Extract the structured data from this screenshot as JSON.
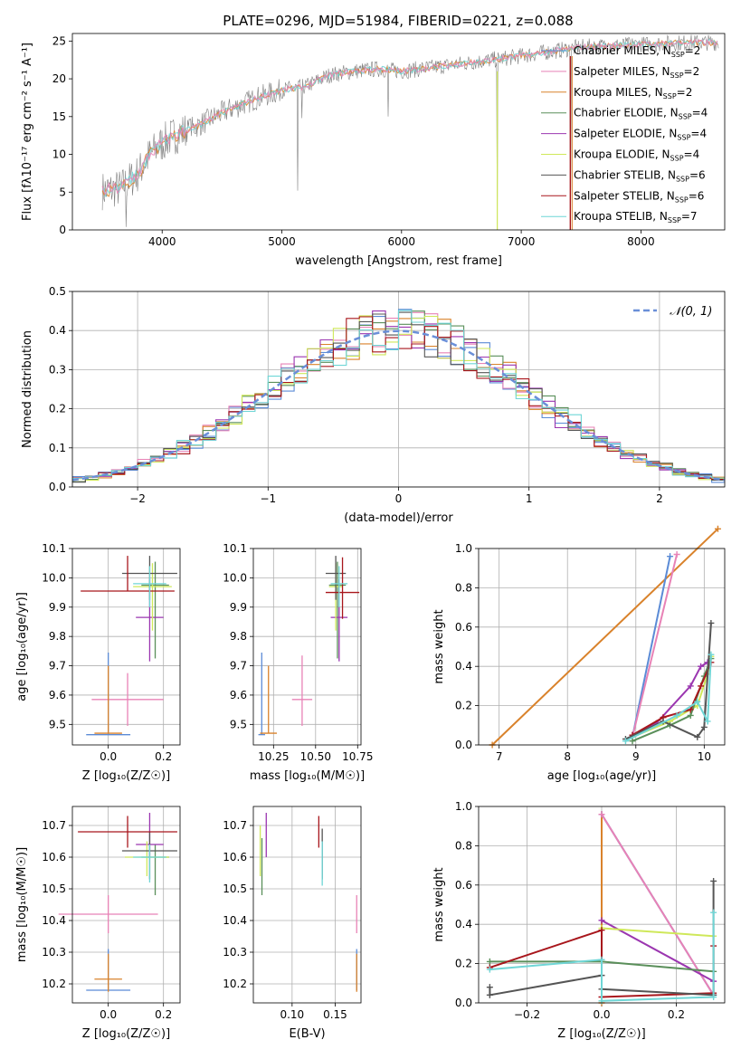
{
  "figure": {
    "title": "PLATE=0296, MJD=51984, FIBERID=0221, z=0.088"
  },
  "colors": {
    "Chabrier MILES": "#5b8bd6",
    "Salpeter MILES": "#e882b6",
    "Kroupa MILES": "#d9822b",
    "Chabrier ELODIE": "#5a8f5a",
    "Salpeter ELODIE": "#9b36b0",
    "Kroupa ELODIE": "#cfe85a",
    "Chabrier STELIB": "#555555",
    "Salpeter STELIB": "#a8161c",
    "Kroupa STELIB": "#6fd6d6",
    "data": "#808080",
    "normal": "#6a8fd8"
  },
  "chart_data": [
    {
      "id": "spectrum",
      "type": "line",
      "xlabel": "wavelength [Angstrom, rest frame]",
      "ylabel": "Flux [fλ10⁻¹⁷ erg cm⁻² s⁻¹ A⁻¹]",
      "xlim": [
        3250,
        8700
      ],
      "ylim": [
        0,
        26
      ],
      "xticks": [
        4000,
        5000,
        6000,
        7000,
        8000
      ],
      "yticks": [
        0,
        5,
        10,
        15,
        20,
        25
      ],
      "legend_position": "upper right",
      "legend": [
        {
          "label": "Chabrier MILES, N",
          "sub": "SSP",
          "post": "=2"
        },
        {
          "label": "Salpeter MILES, N",
          "sub": "SSP",
          "post": "=2"
        },
        {
          "label": "Kroupa MILES, N",
          "sub": "SSP",
          "post": "=2"
        },
        {
          "label": "Chabrier ELODIE, N",
          "sub": "SSP",
          "post": "=4"
        },
        {
          "label": "Salpeter ELODIE, N",
          "sub": "SSP",
          "post": "=4"
        },
        {
          "label": "Kroupa ELODIE, N",
          "sub": "SSP",
          "post": "=4"
        },
        {
          "label": "Chabrier STELIB, N",
          "sub": "SSP",
          "post": "=6"
        },
        {
          "label": "Salpeter STELIB, N",
          "sub": "SSP",
          "post": "=6"
        },
        {
          "label": "Kroupa STELIB, N",
          "sub": "SSP",
          "post": "=7"
        }
      ],
      "continuum": [
        [
          3500,
          5.2
        ],
        [
          3650,
          5.5
        ],
        [
          3800,
          7.5
        ],
        [
          3900,
          10.0
        ],
        [
          4000,
          11.5
        ],
        [
          4100,
          12.5
        ],
        [
          4300,
          13.8
        ],
        [
          4500,
          15.5
        ],
        [
          4800,
          17.5
        ],
        [
          5000,
          18.5
        ],
        [
          5200,
          19.0
        ],
        [
          5400,
          20.5
        ],
        [
          5600,
          21.0
        ],
        [
          5800,
          21.3
        ],
        [
          6000,
          21.0
        ],
        [
          6300,
          21.6
        ],
        [
          6600,
          22.2
        ],
        [
          6900,
          22.8
        ],
        [
          7200,
          23.5
        ],
        [
          7500,
          24.2
        ],
        [
          7800,
          24.4
        ],
        [
          8100,
          24.6
        ],
        [
          8400,
          24.8
        ],
        [
          8650,
          24.8
        ]
      ],
      "features": [
        [
          5130,
          5.2
        ],
        [
          3700,
          0.4
        ],
        [
          4230,
          14.6
        ],
        [
          5170,
          14.8
        ],
        [
          5890,
          15.0
        ],
        [
          6800,
          0.0
        ],
        [
          7410,
          0.0
        ]
      ]
    },
    {
      "id": "residuals",
      "type": "line",
      "xlabel": "(data-model)/error",
      "ylabel": "Normed distribution",
      "xlim": [
        -2.5,
        2.5
      ],
      "ylim": [
        0,
        0.5
      ],
      "xticks": [
        -2,
        -1,
        0,
        1,
        2
      ],
      "yticks": [
        0.0,
        0.1,
        0.2,
        0.3,
        0.4,
        0.5
      ],
      "legend_position": "upper right",
      "legend_label": "𝒩(0, 1)",
      "normal_mean": 0,
      "normal_sigma": 1
    },
    {
      "id": "age_vs_Z",
      "type": "scatter",
      "xlabel": "Z [log₁₀(Z/Z☉)]",
      "ylabel": "age  [log₁₀(age/yr)]",
      "xlim": [
        -0.13,
        0.26
      ],
      "ylim": [
        9.43,
        10.1
      ],
      "xticks": [
        0.0,
        0.2
      ],
      "yticks": [
        9.5,
        9.6,
        9.7,
        9.8,
        9.9,
        10.0,
        10.1
      ],
      "points": [
        {
          "model": "Chabrier MILES",
          "x": 0.0,
          "y": 9.465,
          "xerr": 0.08,
          "yerr": [
            0.0,
            0.28
          ]
        },
        {
          "model": "Salpeter MILES",
          "x": 0.07,
          "y": 9.585,
          "xerr": 0.13,
          "yerr": [
            0.09,
            0.09
          ]
        },
        {
          "model": "Kroupa MILES",
          "x": 0.0,
          "y": 9.47,
          "xerr": 0.05,
          "yerr": [
            0.0,
            0.23
          ]
        },
        {
          "model": "Chabrier ELODIE",
          "x": 0.17,
          "y": 9.975,
          "xerr": 0.05,
          "yerr": [
            0.25,
            0.08
          ]
        },
        {
          "model": "Salpeter ELODIE",
          "x": 0.15,
          "y": 9.865,
          "xerr": 0.05,
          "yerr": [
            0.15,
            0.13
          ]
        },
        {
          "model": "Kroupa ELODIE",
          "x": 0.16,
          "y": 9.97,
          "xerr": 0.07,
          "yerr": [
            0.15,
            0.08
          ]
        },
        {
          "model": "Chabrier STELIB",
          "x": 0.15,
          "y": 10.015,
          "xerr": 0.1,
          "yerr": [
            0.09,
            0.06
          ]
        },
        {
          "model": "Salpeter STELIB",
          "x": 0.07,
          "y": 9.955,
          "xerr": 0.17,
          "yerr": [
            0.0,
            0.12
          ]
        },
        {
          "model": "Kroupa STELIB",
          "x": 0.15,
          "y": 9.98,
          "xerr": 0.06,
          "yerr": [
            0.08,
            0.06
          ]
        }
      ]
    },
    {
      "id": "age_vs_mass",
      "type": "scatter",
      "xlabel": "mass [log₁₀(M/M☉)]",
      "ylabel": "",
      "xlim": [
        10.13,
        10.77
      ],
      "ylim": [
        9.43,
        10.1
      ],
      "xticks": [
        10.25,
        10.5,
        10.75
      ],
      "yticks": [
        9.5,
        9.6,
        9.7,
        9.8,
        9.9,
        10.0,
        10.1
      ],
      "points": [
        {
          "model": "Chabrier MILES",
          "x": 10.18,
          "y": 9.465,
          "xerr": 0.02,
          "yerr": [
            0.0,
            0.28
          ]
        },
        {
          "model": "Salpeter MILES",
          "x": 10.42,
          "y": 9.585,
          "xerr": 0.06,
          "yerr": [
            0.09,
            0.15
          ]
        },
        {
          "model": "Kroupa MILES",
          "x": 10.22,
          "y": 9.47,
          "xerr": 0.05,
          "yerr": [
            0.0,
            0.23
          ]
        },
        {
          "model": "Chabrier ELODIE",
          "x": 10.63,
          "y": 9.975,
          "xerr": 0.05,
          "yerr": [
            0.25,
            0.08
          ]
        },
        {
          "model": "Salpeter ELODIE",
          "x": 10.64,
          "y": 9.865,
          "xerr": 0.05,
          "yerr": [
            0.15,
            0.13
          ]
        },
        {
          "model": "Kroupa ELODIE",
          "x": 10.62,
          "y": 9.97,
          "xerr": 0.04,
          "yerr": [
            0.15,
            0.08
          ]
        },
        {
          "model": "Chabrier STELIB",
          "x": 10.62,
          "y": 10.015,
          "xerr": 0.06,
          "yerr": [
            0.09,
            0.06
          ]
        },
        {
          "model": "Salpeter STELIB",
          "x": 10.66,
          "y": 9.95,
          "xerr": 0.1,
          "yerr": [
            0.09,
            0.12
          ]
        },
        {
          "model": "Kroupa STELIB",
          "x": 10.64,
          "y": 9.98,
          "xerr": 0.05,
          "yerr": [
            0.08,
            0.06
          ]
        }
      ]
    },
    {
      "id": "weight_vs_age",
      "type": "line",
      "xlabel": "age  [log₁₀(age/yr)]",
      "ylabel": "mass weight",
      "xlim": [
        6.7,
        10.3
      ],
      "ylim": [
        0,
        1
      ],
      "xticks": [
        7,
        8,
        9,
        10
      ],
      "yticks": [
        0.0,
        0.2,
        0.4,
        0.6,
        0.8,
        1.0
      ],
      "series": [
        {
          "model": "Kroupa MILES",
          "x": [
            6.9,
            10.2
          ],
          "y": [
            0.0,
            1.1
          ]
        },
        {
          "model": "Chabrier MILES",
          "x": [
            8.95,
            9.5
          ],
          "y": [
            0.04,
            0.96
          ]
        },
        {
          "model": "Salpeter MILES",
          "x": [
            8.95,
            9.6
          ],
          "y": [
            0.04,
            0.97
          ]
        },
        {
          "model": "Salpeter ELODIE",
          "x": [
            8.95,
            9.3,
            9.8,
            9.95,
            10.05
          ],
          "y": [
            0.05,
            0.11,
            0.3,
            0.4,
            0.42
          ]
        },
        {
          "model": "Kroupa ELODIE",
          "x": [
            8.95,
            9.5,
            9.9,
            10.05,
            10.1
          ],
          "y": [
            0.04,
            0.12,
            0.2,
            0.36,
            0.45
          ]
        },
        {
          "model": "Chabrier ELODIE",
          "x": [
            8.95,
            9.5,
            9.8,
            10.0,
            10.1
          ],
          "y": [
            0.02,
            0.1,
            0.15,
            0.35,
            0.44
          ]
        },
        {
          "model": "Salpeter STELIB",
          "x": [
            8.95,
            9.4,
            9.8,
            9.95,
            10.1
          ],
          "y": [
            0.05,
            0.14,
            0.18,
            0.3,
            0.42
          ]
        },
        {
          "model": "Chabrier STELIB",
          "x": [
            8.85,
            9.4,
            9.9,
            10.0,
            10.1
          ],
          "y": [
            0.03,
            0.12,
            0.04,
            0.09,
            0.62
          ]
        },
        {
          "model": "Kroupa STELIB",
          "x": [
            8.85,
            9.6,
            9.9,
            10.05,
            10.1
          ],
          "y": [
            0.02,
            0.15,
            0.22,
            0.12,
            0.46
          ]
        }
      ]
    },
    {
      "id": "mass_vs_Z",
      "type": "scatter",
      "xlabel": "Z [log₁₀(Z/Z☉)]",
      "ylabel": "mass [log₁₀(M/M☉)]",
      "xlim": [
        -0.13,
        0.26
      ],
      "ylim": [
        10.14,
        10.76
      ],
      "xticks": [
        0.0,
        0.2
      ],
      "yticks": [
        10.2,
        10.3,
        10.4,
        10.5,
        10.6,
        10.7
      ],
      "points": [
        {
          "model": "Chabrier MILES",
          "x": 0.0,
          "y": 10.18,
          "xerr": 0.08,
          "yerr": [
            0.0,
            0.13
          ]
        },
        {
          "model": "Salpeter MILES",
          "x": 0.0,
          "y": 10.42,
          "xerr": 0.18,
          "yerr": [
            0.06,
            0.06
          ]
        },
        {
          "model": "Kroupa MILES",
          "x": 0.0,
          "y": 10.215,
          "xerr": 0.05,
          "yerr": [
            0.04,
            0.08
          ]
        },
        {
          "model": "Chabrier ELODIE",
          "x": 0.17,
          "y": 10.6,
          "xerr": 0.05,
          "yerr": [
            0.12,
            0.04
          ]
        },
        {
          "model": "Salpeter ELODIE",
          "x": 0.15,
          "y": 10.64,
          "xerr": 0.05,
          "yerr": [
            0.04,
            0.1
          ]
        },
        {
          "model": "Kroupa ELODIE",
          "x": 0.14,
          "y": 10.6,
          "xerr": 0.08,
          "yerr": [
            0.06,
            0.05
          ]
        },
        {
          "model": "Chabrier STELIB",
          "x": 0.15,
          "y": 10.62,
          "xerr": 0.1,
          "yerr": [
            0.09,
            0.06
          ]
        },
        {
          "model": "Salpeter STELIB",
          "x": 0.07,
          "y": 10.68,
          "xerr": 0.18,
          "yerr": [
            0.05,
            0.05
          ]
        },
        {
          "model": "Kroupa STELIB",
          "x": 0.15,
          "y": 10.6,
          "xerr": 0.06,
          "yerr": [
            0.08,
            0.04
          ]
        }
      ]
    },
    {
      "id": "mass_vs_EBV",
      "type": "scatter",
      "xlabel": "E(B-V)",
      "ylabel": "",
      "xlim": [
        0.055,
        0.18
      ],
      "ylim": [
        10.14,
        10.76
      ],
      "xticks": [
        0.1,
        0.15
      ],
      "yticks": [
        10.2,
        10.3,
        10.4,
        10.5,
        10.6,
        10.7
      ],
      "points": [
        {
          "model": "Chabrier MILES",
          "x": 0.175,
          "y": 10.18,
          "xerr": 0.0,
          "yerr": [
            0.0,
            0.13
          ]
        },
        {
          "model": "Salpeter MILES",
          "x": 0.175,
          "y": 10.42,
          "xerr": 0.0,
          "yerr": [
            0.06,
            0.06
          ]
        },
        {
          "model": "Kroupa MILES",
          "x": 0.175,
          "y": 10.215,
          "xerr": 0.0,
          "yerr": [
            0.04,
            0.08
          ]
        },
        {
          "model": "Chabrier ELODIE",
          "x": 0.065,
          "y": 10.6,
          "xerr": 0.0,
          "yerr": [
            0.12,
            0.06
          ]
        },
        {
          "model": "Salpeter ELODIE",
          "x": 0.07,
          "y": 10.64,
          "xerr": 0.0,
          "yerr": [
            0.04,
            0.1
          ]
        },
        {
          "model": "Kroupa ELODIE",
          "x": 0.063,
          "y": 10.6,
          "xerr": 0.0,
          "yerr": [
            0.06,
            0.1
          ]
        },
        {
          "model": "Chabrier STELIB",
          "x": 0.135,
          "y": 10.62,
          "xerr": 0.0,
          "yerr": [
            0.09,
            0.07
          ]
        },
        {
          "model": "Salpeter STELIB",
          "x": 0.131,
          "y": 10.68,
          "xerr": 0.0,
          "yerr": [
            0.05,
            0.05
          ]
        },
        {
          "model": "Kroupa STELIB",
          "x": 0.135,
          "y": 10.6,
          "xerr": 0.0,
          "yerr": [
            0.09,
            0.05
          ]
        }
      ]
    },
    {
      "id": "weight_vs_Z",
      "type": "line",
      "xlabel": "Z [log₁₀(Z/Z☉)]",
      "ylabel": "mass weight",
      "xlim": [
        -0.33,
        0.33
      ],
      "ylim": [
        0,
        1
      ],
      "xticks": [
        -0.2,
        0.0,
        0.2
      ],
      "yticks": [
        0.0,
        0.2,
        0.4,
        0.6,
        0.8,
        1.0
      ],
      "series": [
        {
          "model": "Kroupa MILES",
          "x": [
            0.0,
            0.0
          ],
          "y": [
            0.0,
            0.96
          ]
        },
        {
          "model": "Chabrier MILES",
          "x": [
            0.0,
            0.3
          ],
          "y": [
            0.96,
            0.04
          ]
        },
        {
          "model": "Salpeter MILES",
          "x": [
            0.0,
            0.3
          ],
          "y": [
            0.96,
            0.04
          ]
        },
        {
          "model": "Salpeter ELODIE",
          "x": [
            0.0,
            0.3
          ],
          "y": [
            0.42,
            0.11
          ]
        },
        {
          "model": "Kroupa ELODIE",
          "x": [
            0.0,
            0.3
          ],
          "y": [
            0.38,
            0.34
          ]
        },
        {
          "model": "Chabrier ELODIE",
          "x": [
            -0.3,
            0.0,
            0.3
          ],
          "y": [
            0.21,
            0.21,
            0.16
          ]
        },
        {
          "model": "Salpeter STELIB",
          "x": [
            -0.3,
            0.0,
            0.0,
            0.3,
            0.3
          ],
          "y": [
            0.18,
            0.37,
            0.03,
            0.05,
            0.29
          ]
        },
        {
          "model": "Chabrier STELIB",
          "x": [
            -0.3,
            -0.3,
            0.0,
            0.0,
            0.3,
            0.3
          ],
          "y": [
            0.08,
            0.04,
            0.14,
            0.07,
            0.04,
            0.62
          ]
        },
        {
          "model": "Kroupa STELIB",
          "x": [
            -0.3,
            0.0,
            0.0,
            0.3,
            0.3
          ],
          "y": [
            0.17,
            0.22,
            0.01,
            0.03,
            0.46
          ]
        }
      ]
    }
  ]
}
